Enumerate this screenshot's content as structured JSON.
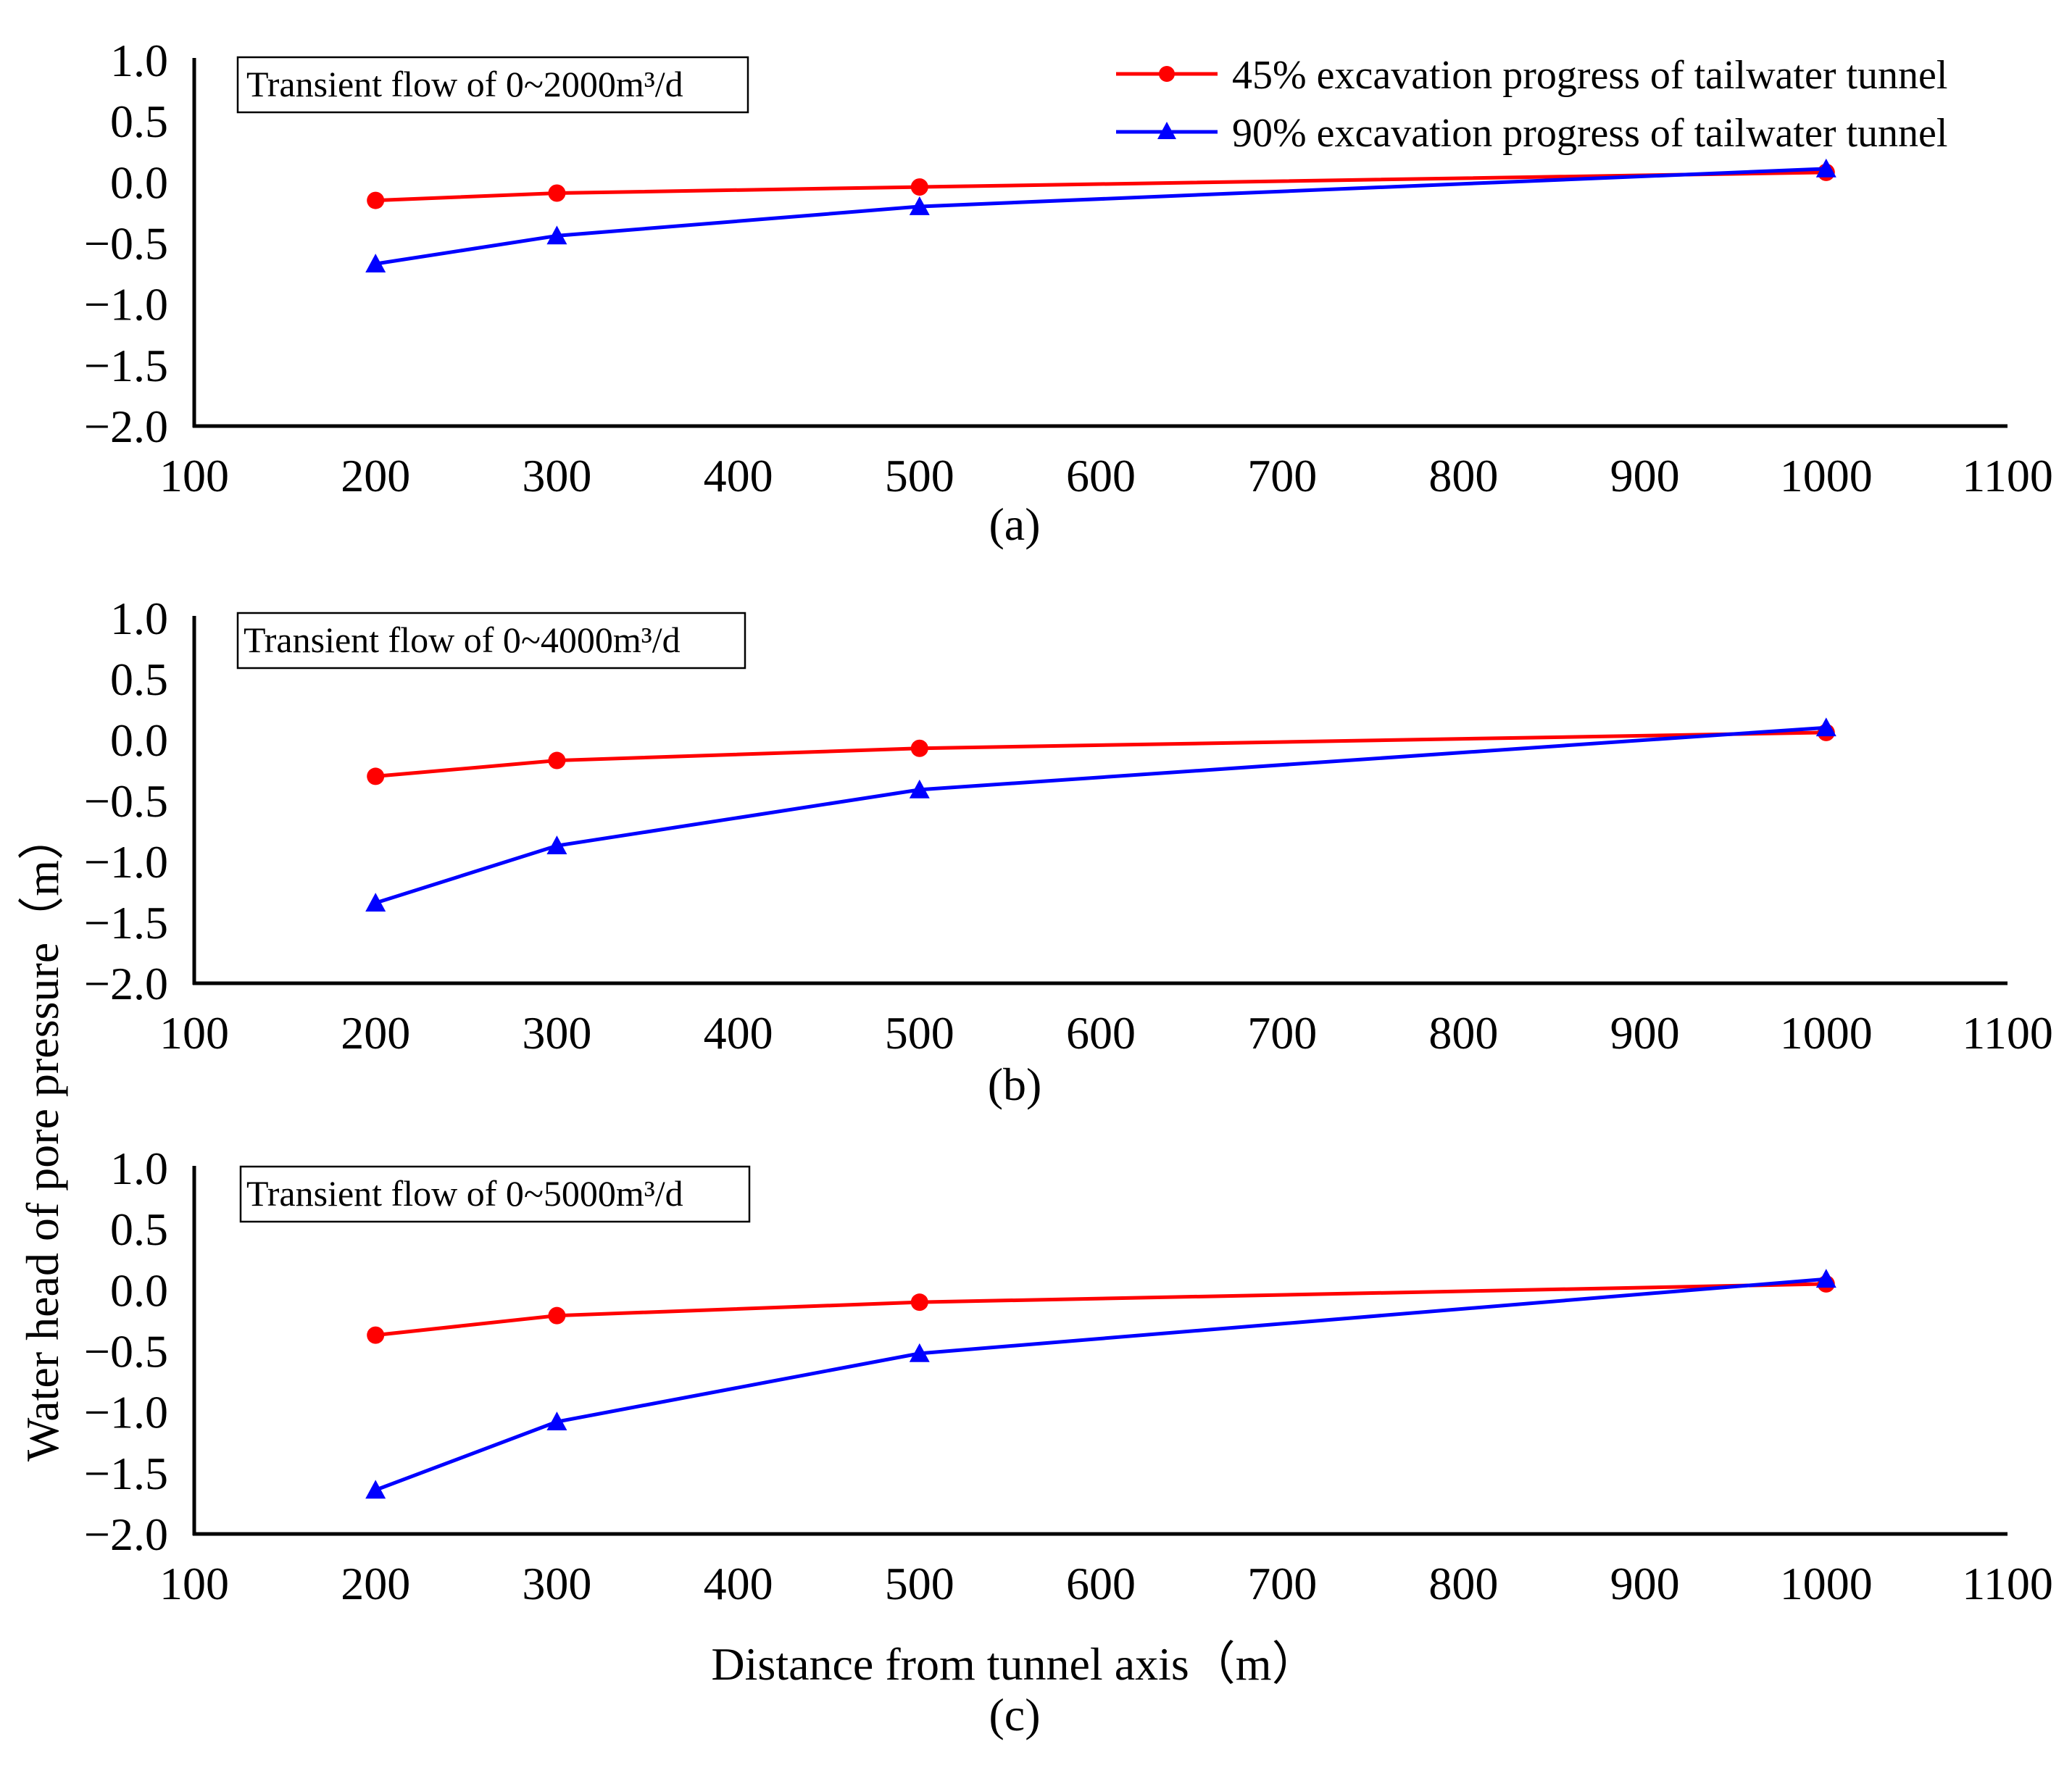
{
  "chart_data": [
    {
      "type": "line",
      "panel_label": "(a)",
      "annotation": "Transient flow of 0~2000m³/d",
      "x": [
        200,
        300,
        500,
        1000
      ],
      "xlim": [
        100,
        1100
      ],
      "ylim": [
        -2.0,
        1.0
      ],
      "xticks": [
        "100",
        "200",
        "300",
        "400",
        "500",
        "600",
        "700",
        "800",
        "900",
        "1000",
        "1100"
      ],
      "yticks": [
        "1.0",
        "0.5",
        "0.0",
        "-0.5",
        "-1.0",
        "-1.5",
        "-2.0"
      ],
      "series": [
        {
          "name": "45% excavation progress of tailwater tunnel",
          "color": "#ff0000",
          "marker": "circle",
          "values": [
            -0.15,
            -0.09,
            -0.04,
            0.08
          ]
        },
        {
          "name": "90% excavation progress of tailwater tunnel",
          "color": "#0000ff",
          "marker": "triangle",
          "values": [
            -0.67,
            -0.44,
            -0.2,
            0.11
          ]
        }
      ]
    },
    {
      "type": "line",
      "panel_label": "(b)",
      "annotation": "Transient flow of 0~4000m³/d",
      "x": [
        200,
        300,
        500,
        1000
      ],
      "xlim": [
        100,
        1100
      ],
      "ylim": [
        -2.0,
        1.0
      ],
      "xticks": [
        "100",
        "200",
        "300",
        "400",
        "500",
        "600",
        "700",
        "800",
        "900",
        "1000",
        "1100"
      ],
      "yticks": [
        "1.0",
        "0.5",
        "0.0",
        "-0.5",
        "-1.0",
        "-1.5",
        "-2.0"
      ],
      "series": [
        {
          "name": "45% excavation progress of tailwater tunnel",
          "color": "#ff0000",
          "marker": "circle",
          "values": [
            -0.3,
            -0.17,
            -0.07,
            0.06
          ]
        },
        {
          "name": "90% excavation progress of tailwater tunnel",
          "color": "#0000ff",
          "marker": "triangle",
          "values": [
            -1.34,
            -0.87,
            -0.41,
            0.1
          ]
        }
      ]
    },
    {
      "type": "line",
      "panel_label": "(c)",
      "annotation": "Transient flow of 0~5000m³/d",
      "x": [
        200,
        300,
        500,
        1000
      ],
      "xlim": [
        100,
        1100
      ],
      "ylim": [
        -2.0,
        1.0
      ],
      "xticks": [
        "100",
        "200",
        "300",
        "400",
        "500",
        "600",
        "700",
        "800",
        "900",
        "1000",
        "1100"
      ],
      "yticks": [
        "1.0",
        "0.5",
        "0.0",
        "-0.5",
        "-1.0",
        "-1.5",
        "-2.0"
      ],
      "series": [
        {
          "name": "45% excavation progress of tailwater tunnel",
          "color": "#ff0000",
          "marker": "circle",
          "values": [
            -0.37,
            -0.21,
            -0.1,
            0.05
          ]
        },
        {
          "name": "90% excavation progress of tailwater tunnel",
          "color": "#0000ff",
          "marker": "triangle",
          "values": [
            -1.64,
            -1.08,
            -0.52,
            0.09
          ]
        }
      ]
    }
  ],
  "legend": [
    {
      "label": "45% excavation progress of tailwater tunnel",
      "color": "#ff0000",
      "marker": "circle"
    },
    {
      "label": "90% excavation progress of tailwater tunnel",
      "color": "#0000ff",
      "marker": "triangle"
    }
  ],
  "ylabel": "Water head of pore pressure（m）",
  "xlabel": "Distance from tunnel axis（m）"
}
